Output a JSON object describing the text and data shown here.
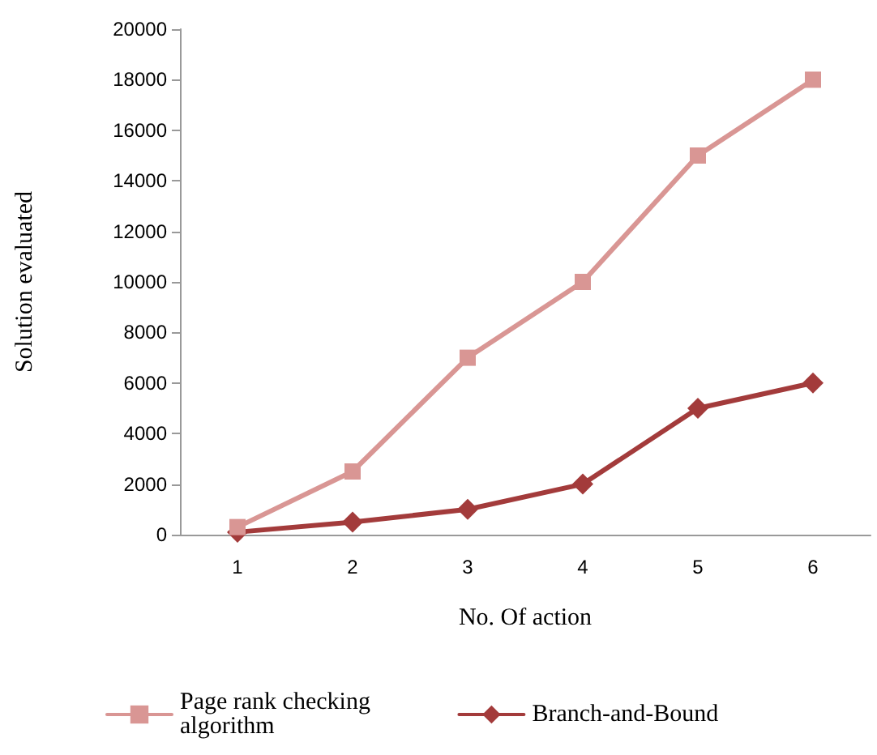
{
  "chart_data": {
    "type": "line",
    "xlabel": "No. Of action",
    "ylabel": "Solution evaluated",
    "categories": [
      "1",
      "2",
      "3",
      "4",
      "5",
      "6"
    ],
    "series": [
      {
        "name": "Page rank checking algorithm",
        "color": "#d99694",
        "marker": "square",
        "values": [
          300,
          2500,
          7000,
          10000,
          15000,
          18000
        ]
      },
      {
        "name": "Branch-and-Bound",
        "color": "#a33b3b",
        "marker": "diamond",
        "values": [
          100,
          500,
          1000,
          2000,
          5000,
          6000
        ]
      }
    ],
    "ylim": [
      0,
      20000
    ],
    "yticks": [
      0,
      2000,
      4000,
      6000,
      8000,
      10000,
      12000,
      14000,
      16000,
      18000,
      20000
    ],
    "grid": false,
    "legend": "bottom",
    "line_style": "solid"
  }
}
